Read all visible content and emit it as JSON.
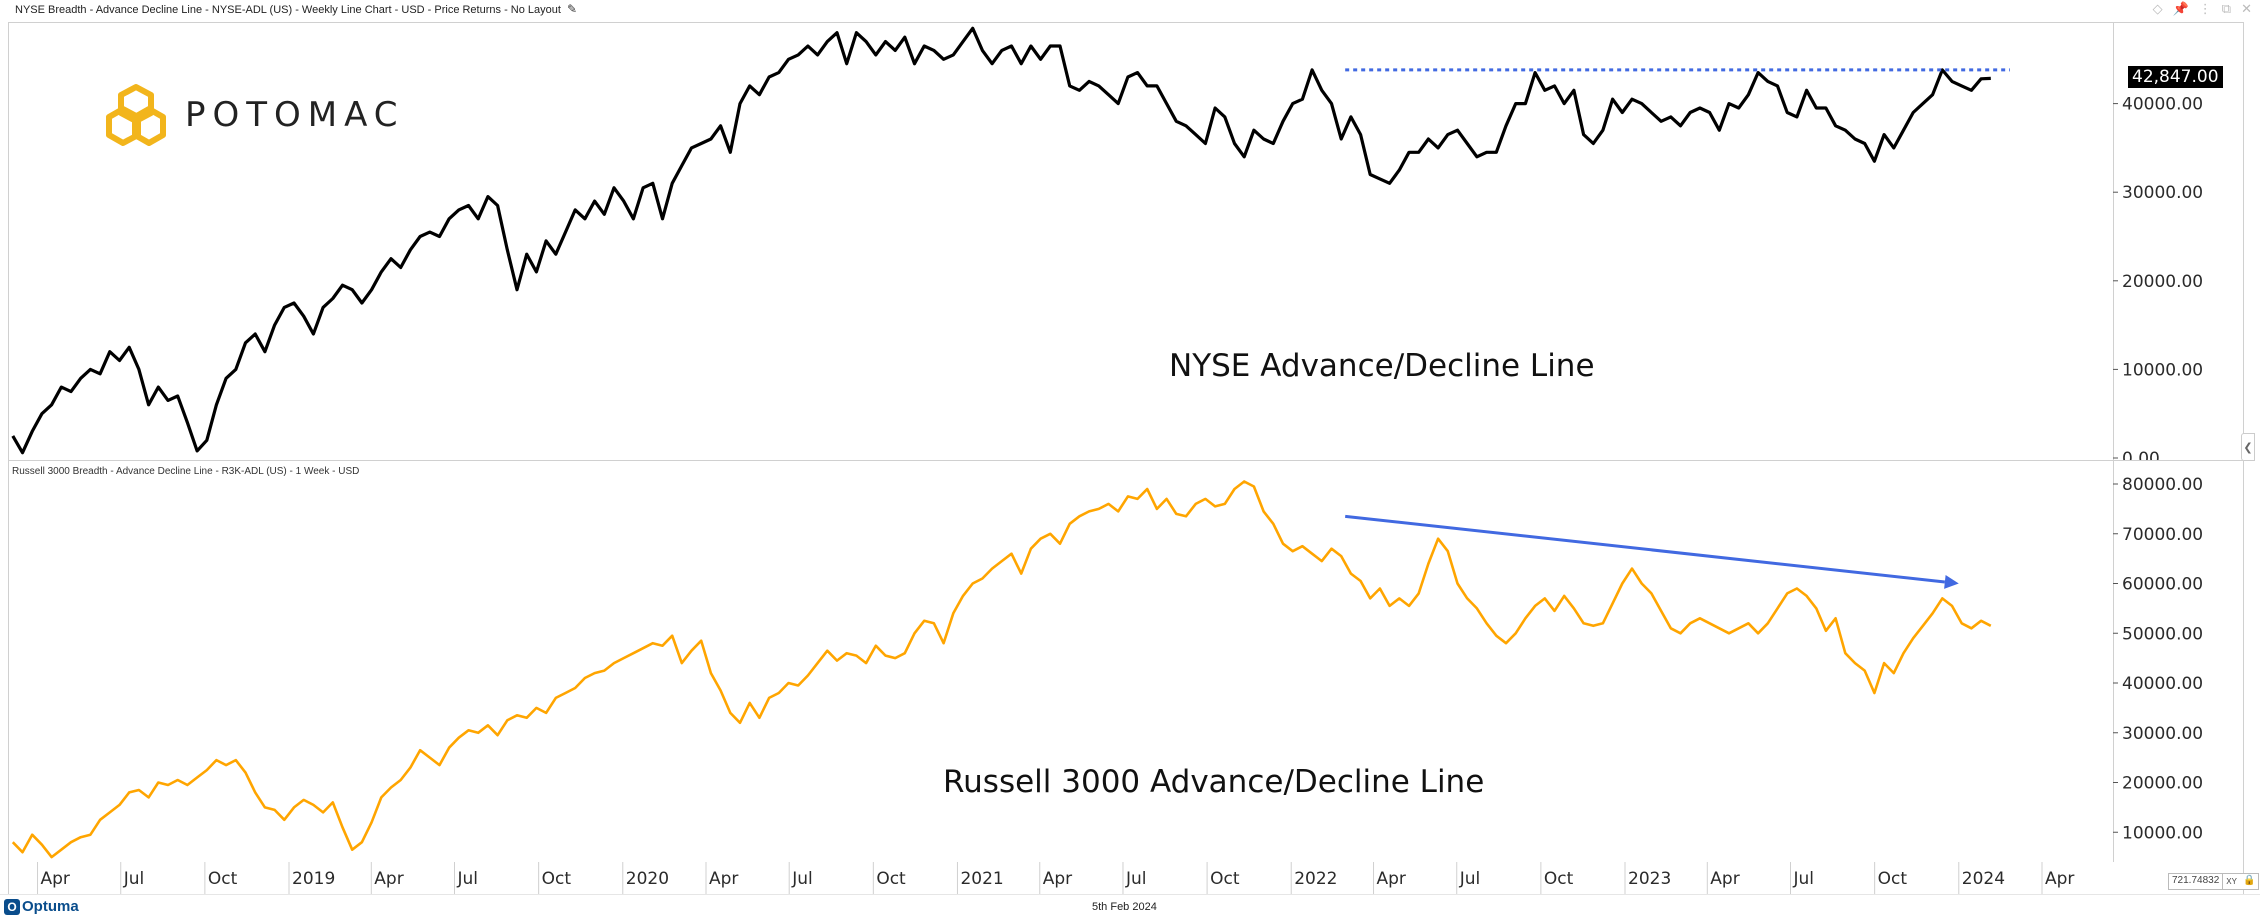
{
  "window": {
    "title": "NYSE Breadth - Advance Decline Line - NYSE-ADL (US) - Weekly Line Chart - USD - Price Returns - No Layout",
    "icons": [
      "diamond-icon",
      "pin-icon",
      "link-icon",
      "restore-icon",
      "close-icon"
    ]
  },
  "logo": {
    "text": "POTOMAC",
    "color": "#F2B51C"
  },
  "footer": {
    "brand": "Optuma",
    "date": "5th Feb 2024",
    "coord_value": "721.74832",
    "coord_mode": "XY"
  },
  "colors": {
    "nyse_line": "#000000",
    "r3k_line": "#FFA500",
    "annotation_blue": "#4169E1"
  },
  "chart_data": [
    {
      "type": "line",
      "title": "NYSE Breadth - Advance Decline Line - NYSE-ADL (US) - Weekly Line Chart - USD - Price Returns - No Layout",
      "annotation": "NYSE Advance/Decline Line",
      "series_name": "NYSE-ADL",
      "last_value_label": "42,847.00",
      "ylim": [
        0,
        50000
      ],
      "yticks": [
        0,
        10000,
        20000,
        30000,
        40000
      ],
      "ytick_labels": [
        "0.00",
        "10000.00",
        "20000.00",
        "30000.00",
        "40000.00"
      ],
      "x_start": "2018-03-05",
      "x_end": "2024-02-05",
      "frequency": "biweekly samples of weekly data",
      "values": [
        2500,
        600,
        3000,
        5000,
        6000,
        8000,
        7500,
        9000,
        10000,
        9500,
        12000,
        11000,
        12500,
        10000,
        6000,
        8000,
        6500,
        7000,
        4000,
        800,
        2000,
        6000,
        9000,
        10000,
        13000,
        14000,
        12000,
        15000,
        17000,
        17500,
        16000,
        14000,
        17000,
        18000,
        19500,
        19000,
        17500,
        19000,
        21000,
        22500,
        21500,
        23500,
        25000,
        25500,
        25000,
        27000,
        28000,
        28500,
        27000,
        29500,
        28500,
        23500,
        19000,
        23000,
        21000,
        24500,
        23000,
        25500,
        28000,
        27000,
        29000,
        27500,
        30500,
        29000,
        27000,
        30500,
        31000,
        27000,
        31000,
        33000,
        35000,
        35500,
        36000,
        37500,
        34500,
        40000,
        42000,
        41000,
        43000,
        43500,
        45000,
        45500,
        46500,
        45500,
        47000,
        48000,
        44500,
        48000,
        47000,
        45500,
        47000,
        46000,
        47500,
        44500,
        46500,
        46000,
        45000,
        45500,
        47000,
        48500,
        46000,
        44500,
        46000,
        46500,
        44500,
        46500,
        45000,
        46500,
        46500,
        42000,
        41500,
        42500,
        42000,
        41000,
        40000,
        43000,
        43500,
        42000,
        42000,
        40000,
        38000,
        37500,
        36500,
        35500,
        39500,
        38500,
        35500,
        34000,
        37000,
        36000,
        35500,
        38000,
        40000,
        40500,
        43800,
        41500,
        40000,
        36000,
        38500,
        36500,
        32000,
        31500,
        31000,
        32500,
        34500,
        34500,
        36000,
        35000,
        36500,
        37000,
        35500,
        34000,
        34500,
        34500,
        37500,
        40000,
        40000,
        43500,
        41500,
        42000,
        40000,
        41500,
        36500,
        35500,
        37000,
        40500,
        39000,
        40500,
        40000,
        39000,
        38000,
        38500,
        37500,
        39000,
        39500,
        39000,
        37000,
        40000,
        39500,
        41000,
        43500,
        42500,
        42000,
        39000,
        38500,
        41500,
        39500,
        39500,
        37500,
        37000,
        36000,
        35500,
        33500,
        36500,
        35000,
        37000,
        39000,
        40000,
        41000,
        43800,
        42500,
        42000,
        41500,
        42800,
        42847
      ],
      "resistance_line": {
        "value": 43800,
        "style": "dotted",
        "color": "#4169E1",
        "from": "2022-03-01",
        "to": "2024-02-26"
      }
    },
    {
      "type": "line",
      "title": "Russell 3000 Breadth - Advance Decline Line - R3K-ADL (US) - 1 Week - USD",
      "annotation": "Russell 3000 Advance/Decline Line",
      "series_name": "R3K-ADL",
      "ylim": [
        4000,
        83000
      ],
      "yticks": [
        10000,
        20000,
        30000,
        40000,
        50000,
        60000,
        70000,
        80000
      ],
      "ytick_labels": [
        "10000.00",
        "20000.00",
        "30000.00",
        "40000.00",
        "50000.00",
        "60000.00",
        "70000.00",
        "80000.00"
      ],
      "x_start": "2018-03-05",
      "x_end": "2024-02-05",
      "values": [
        8000,
        6000,
        9500,
        7500,
        5000,
        6500,
        8000,
        9000,
        9500,
        12500,
        14000,
        15500,
        18000,
        18500,
        17000,
        20000,
        19500,
        20500,
        19500,
        21000,
        22500,
        24500,
        23500,
        24500,
        22000,
        18000,
        15000,
        14500,
        12500,
        15000,
        16500,
        15500,
        14000,
        16000,
        11000,
        6500,
        8000,
        12000,
        17000,
        19000,
        20500,
        23000,
        26500,
        25000,
        23500,
        27000,
        29000,
        30500,
        30000,
        31500,
        29500,
        32500,
        33500,
        33000,
        35000,
        34000,
        37000,
        38000,
        39000,
        41000,
        42000,
        42500,
        44000,
        45000,
        46000,
        47000,
        48000,
        47500,
        49500,
        44000,
        46500,
        48500,
        42000,
        38500,
        34000,
        32000,
        36000,
        33000,
        37000,
        38000,
        40000,
        39500,
        41500,
        44000,
        46500,
        44500,
        46000,
        45500,
        44000,
        47500,
        45500,
        45000,
        46000,
        50000,
        52500,
        52000,
        48000,
        54000,
        57500,
        60000,
        61000,
        63000,
        64500,
        66000,
        62000,
        67000,
        69000,
        70000,
        68000,
        72000,
        73500,
        74500,
        75000,
        76000,
        74500,
        77500,
        77000,
        79000,
        75000,
        77000,
        74000,
        73500,
        76000,
        77000,
        75500,
        76000,
        79000,
        80500,
        79500,
        74500,
        72000,
        68000,
        66500,
        67500,
        66000,
        64500,
        67000,
        65500,
        62000,
        60500,
        57000,
        59000,
        55500,
        57000,
        55500,
        58000,
        64000,
        69000,
        66500,
        60000,
        57000,
        55000,
        52000,
        49500,
        48000,
        50000,
        53000,
        55500,
        57000,
        54500,
        57500,
        55000,
        52000,
        51500,
        52000,
        56000,
        60000,
        63000,
        60000,
        58000,
        54500,
        51000,
        50000,
        52000,
        53000,
        52000,
        51000,
        50000,
        51000,
        52000,
        50000,
        52000,
        55000,
        58000,
        59000,
        57500,
        55000,
        50500,
        53000,
        46000,
        44000,
        42500,
        38000,
        44000,
        42000,
        46000,
        49000,
        51500,
        54000,
        57000,
        55500,
        52000,
        51000,
        52500,
        51500
      ],
      "trend_arrow": {
        "from_value": 73500,
        "from_date": "2022-03-01",
        "to_value": 60000,
        "to_date": "2024-01-01",
        "color": "#4169E1"
      }
    }
  ],
  "x_axis": {
    "labels": [
      "Apr",
      "Jul",
      "Oct",
      "2019",
      "Apr",
      "Jul",
      "Oct",
      "2020",
      "Apr",
      "Jul",
      "Oct",
      "2021",
      "Apr",
      "Jul",
      "Oct",
      "2022",
      "Apr",
      "Jul",
      "Oct",
      "2023",
      "Apr",
      "Jul",
      "Oct",
      "2024",
      "Apr"
    ],
    "tick_dates": [
      "2018-04-01",
      "2018-07-01",
      "2018-10-01",
      "2019-01-01",
      "2019-04-01",
      "2019-07-01",
      "2019-10-01",
      "2020-01-01",
      "2020-04-01",
      "2020-07-01",
      "2020-10-01",
      "2021-01-01",
      "2021-04-01",
      "2021-07-01",
      "2021-10-01",
      "2022-01-01",
      "2022-04-01",
      "2022-07-01",
      "2022-10-01",
      "2023-01-01",
      "2023-04-01",
      "2023-07-01",
      "2023-10-01",
      "2024-01-01",
      "2024-04-01"
    ]
  }
}
